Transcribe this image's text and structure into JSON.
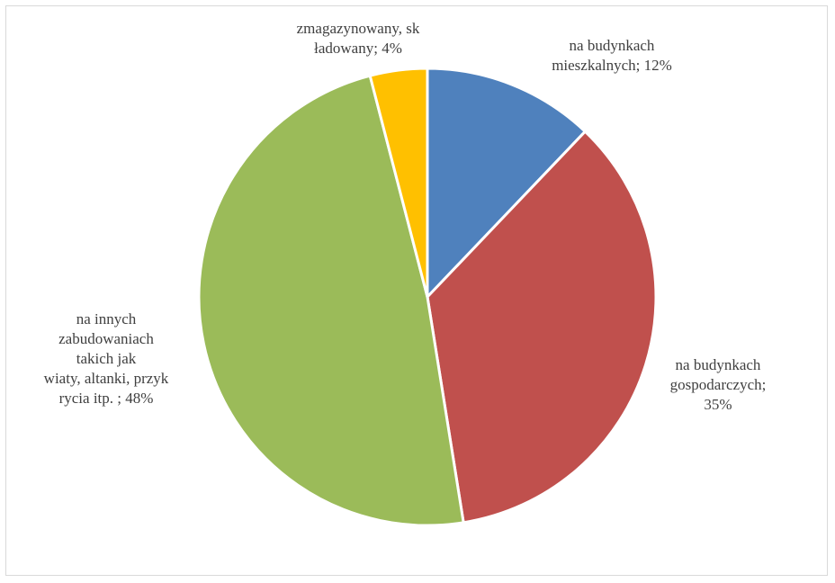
{
  "chart_data": {
    "type": "pie",
    "title": "",
    "start_angle_deg": 0,
    "direction": "clockwise",
    "legend": "none",
    "slices": [
      {
        "label": "na budynkach mieszkalnych",
        "value": 12,
        "color": "#4f81bd",
        "data_label": "na budynkach\nmieszkalnych; 12%"
      },
      {
        "label": "na budynkach gospodarczych",
        "value": 35,
        "color": "#c0504d",
        "data_label": "na budynkach\ngospodarczych;\n35%"
      },
      {
        "label": "na innych zabudowaniach takich jak wiaty, altanki, przykrycia itp.",
        "value": 48,
        "color": "#9bbb59",
        "data_label": "na innych\nzabudowaniach\ntakich jak\nwiaty, altanki, przyk\nrycia itp. ; 48%"
      },
      {
        "label": "zmagazynowany, składowany",
        "value": 4,
        "color": "#ffc000",
        "data_label": "zmagazynowany, sk\nładowany; 4%"
      }
    ]
  }
}
